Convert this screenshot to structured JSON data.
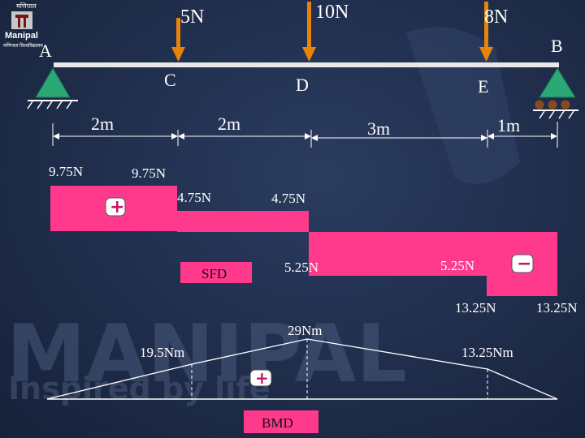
{
  "logo": {
    "top_text": "मणिपाल",
    "name": "Manipal",
    "sub_text": "मणिपाल विश्वविद्यालय"
  },
  "watermark": {
    "word": "MANIPAL",
    "tagline": "Inspired by life"
  },
  "beam": {
    "points": {
      "a": "A",
      "b": "B",
      "c": "C",
      "d": "D",
      "e": "E"
    },
    "loads": {
      "c": "5N",
      "d": "10N",
      "e": "8N"
    },
    "spans": {
      "ac": "2m",
      "cd": "2m",
      "de": "3m",
      "eb": "1m"
    }
  },
  "sfd": {
    "title": "SFD",
    "labels": {
      "left_top": "9.75N",
      "left_top_2": "9.75N",
      "c_mid": "4.75N",
      "c_mid_2": "4.75N",
      "d_neg": "5.25N",
      "e_neg": "5.25N",
      "end_neg": "13.25N",
      "end_neg_2": "13.25N"
    },
    "signs": {
      "positive": "+",
      "negative": "−"
    },
    "colors": {
      "fill": "#ff3a8c"
    }
  },
  "bmd": {
    "title": "BMD",
    "labels": {
      "c": "19.5Nm",
      "d": "29Nm",
      "e": "13.25Nm"
    },
    "signs": {
      "positive": "+"
    }
  },
  "colors": {
    "load_arrow": "#e8820a",
    "support": "#2aa876",
    "roller": "#8b4a1c",
    "beam": "#e8e8e8"
  }
}
